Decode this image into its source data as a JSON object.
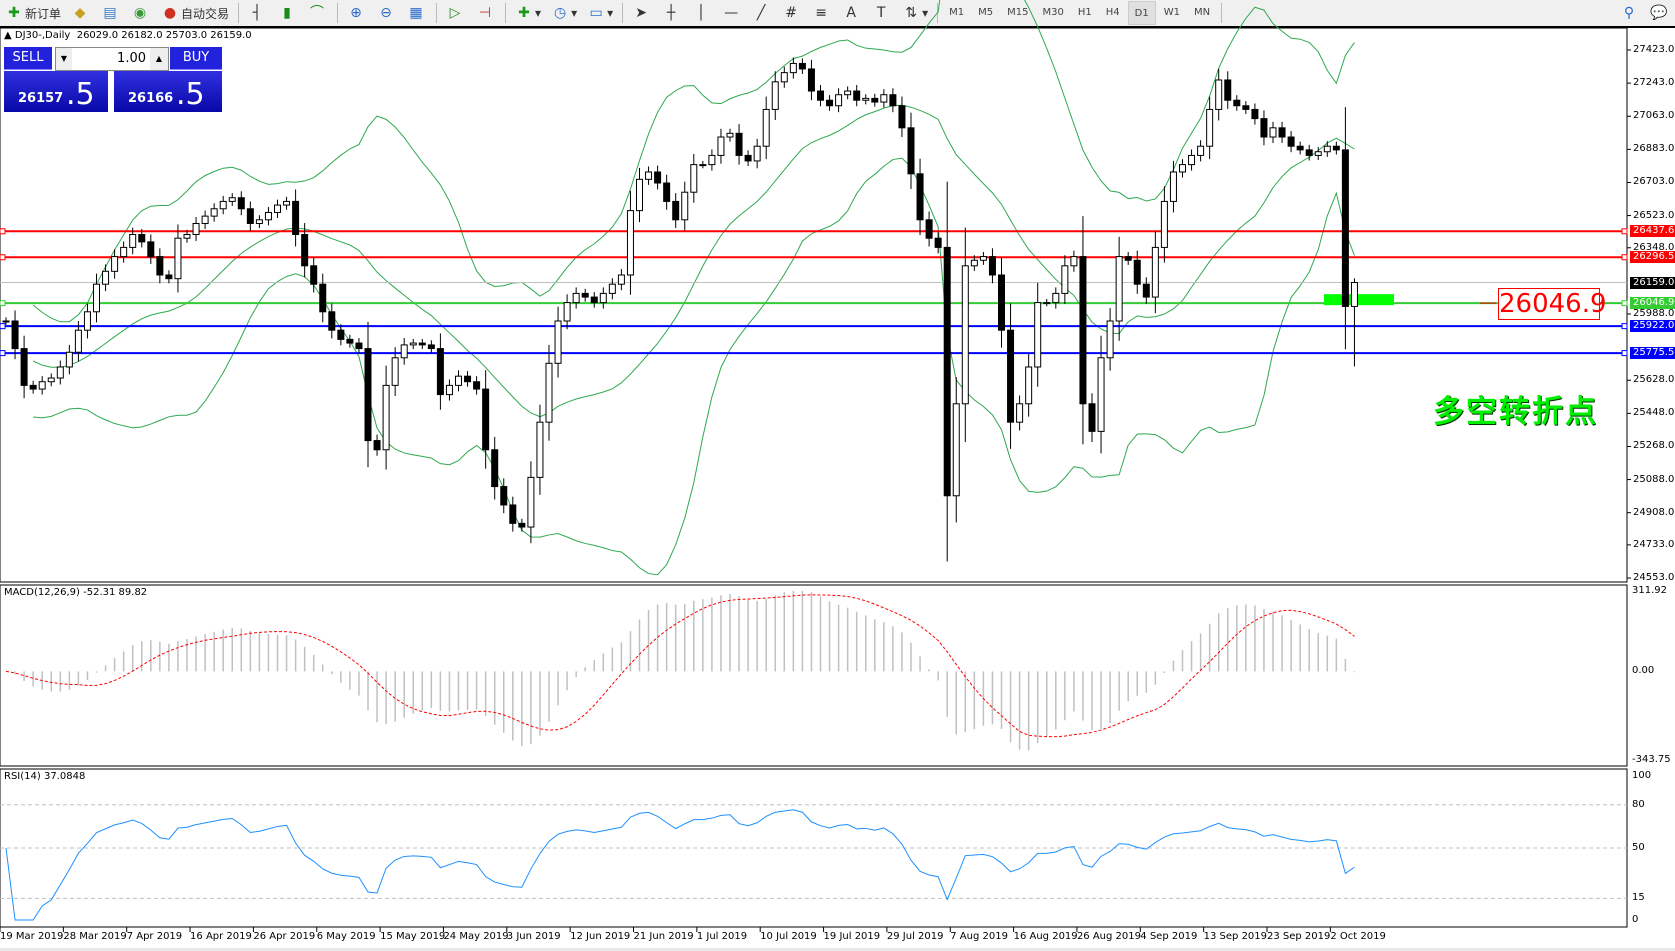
{
  "toolbar": {
    "new_order": "新订单",
    "auto_trading": "自动交易",
    "timeframes": [
      "M1",
      "M5",
      "M15",
      "M30",
      "H1",
      "H4",
      "D1",
      "W1",
      "MN"
    ],
    "active_timeframe": "D1"
  },
  "chart_header": {
    "symbol": "DJ30-,Daily",
    "ohlc": "26029.0 26182.0 25703.0 26159.0"
  },
  "trade_panel": {
    "sell_label": "SELL",
    "buy_label": "BUY",
    "lot": "1.00",
    "sell_price_main": "26157",
    "sell_price_pips": ".5",
    "buy_price_main": "26166",
    "buy_price_pips": ".5"
  },
  "colors": {
    "bollinger": "#2fa84f",
    "macd_signal": "#ff0000",
    "macd_hist": "#c0c0c0",
    "rsi": "#1e90ff",
    "green_zone": "#00ff00"
  },
  "chart_data": [
    {
      "type": "candlestick",
      "series_note_visible": false,
      "ylim": [
        24553.0,
        27423.0
      ],
      "y_ticks": [
        "27423.0",
        "27243.0",
        "27063.0",
        "26883.0",
        "26703.0",
        "26523.0",
        "26348.0",
        "25988.0",
        "25628.0",
        "25448.0",
        "25268.0",
        "25088.0",
        "24908.0",
        "24733.0",
        "24553.0"
      ],
      "x_ticks": [
        "19 Mar 2019",
        "28 Mar 2019",
        "7 Apr 2019",
        "16 Apr 2019",
        "26 Apr 2019",
        "6 May 2019",
        "15 May 2019",
        "24 May 2019",
        "3 Jun 2019",
        "12 Jun 2019",
        "21 Jun 2019",
        "1 Jul 2019",
        "10 Jul 2019",
        "19 Jul 2019",
        "29 Jul 2019",
        "7 Aug 2019",
        "16 Aug 2019",
        "26 Aug 2019",
        "4 Sep 2019",
        "13 Sep 2019",
        "23 Sep 2019",
        "2 Oct 2019"
      ],
      "close": [
        25950,
        25800,
        25600,
        25580,
        25620,
        25640,
        25700,
        25780,
        25900,
        26000,
        26150,
        26220,
        26300,
        26350,
        26420,
        26380,
        26300,
        26200,
        26180,
        26400,
        26420,
        26480,
        26520,
        26560,
        26600,
        26620,
        26560,
        26480,
        26500,
        26540,
        26580,
        26600,
        26420,
        26250,
        26150,
        26000,
        25900,
        25850,
        25830,
        25800,
        25300,
        25250,
        25600,
        25750,
        25820,
        25830,
        25820,
        25800,
        25550,
        25600,
        25650,
        25620,
        25580,
        25250,
        25050,
        24950,
        24850,
        24830,
        25100,
        25400,
        25720,
        25950,
        26050,
        26100,
        26080,
        26050,
        26100,
        26150,
        26200,
        26550,
        26720,
        26760,
        26700,
        26600,
        26500,
        26650,
        26800,
        26800,
        26850,
        26950,
        26970,
        26850,
        26820,
        26900,
        27100,
        27250,
        27300,
        27350,
        27320,
        27200,
        27150,
        27120,
        27180,
        27200,
        27150,
        27160,
        27140,
        27180,
        27120,
        27000,
        26750,
        26500,
        26400,
        26350,
        25000,
        25500,
        26250,
        26280,
        26300,
        26200,
        25900,
        25400,
        25500,
        25700,
        26050,
        26050,
        26100,
        26250,
        26300,
        25500,
        25350,
        25750,
        25950,
        26300,
        26280,
        26150,
        26080,
        26350,
        26600,
        26760,
        26800,
        26850,
        26900,
        27100,
        27260,
        27150,
        27120,
        27100,
        27050,
        26950,
        27000,
        26950,
        26900,
        26880,
        26850,
        26870,
        26900,
        26880,
        26029,
        26159
      ],
      "last_bar": {
        "open": 26029.0,
        "high": 26182.0,
        "low": 25703.0,
        "close": 26159.0
      },
      "indicators": [
        "Bollinger Bands"
      ],
      "levels": [
        {
          "value": "26437.6",
          "color": "#ff0000"
        },
        {
          "value": "26296.5",
          "color": "#ff0000"
        },
        {
          "value": "26159.0",
          "color": "#000000",
          "current": true
        },
        {
          "value": "26046.9",
          "color": "#33cc33"
        },
        {
          "value": "25922.0",
          "color": "#0000ff"
        },
        {
          "value": "25775.5",
          "color": "#0000ff"
        }
      ],
      "annotation_price": "26046.9",
      "annotation_text": "多空转折点"
    },
    {
      "type": "histogram+line",
      "label": "MACD(12,26,9) -52.31 89.82",
      "ylim": [
        -343.75,
        311.92
      ],
      "y_ticks": [
        "311.92",
        "0.00",
        "-343.75"
      ]
    },
    {
      "type": "line",
      "label": "RSI(14) 37.0848",
      "ylim": [
        0,
        100
      ],
      "y_ticks": [
        "100",
        "80",
        "50",
        "15",
        "0"
      ],
      "levels": [
        80,
        50,
        15
      ]
    }
  ]
}
